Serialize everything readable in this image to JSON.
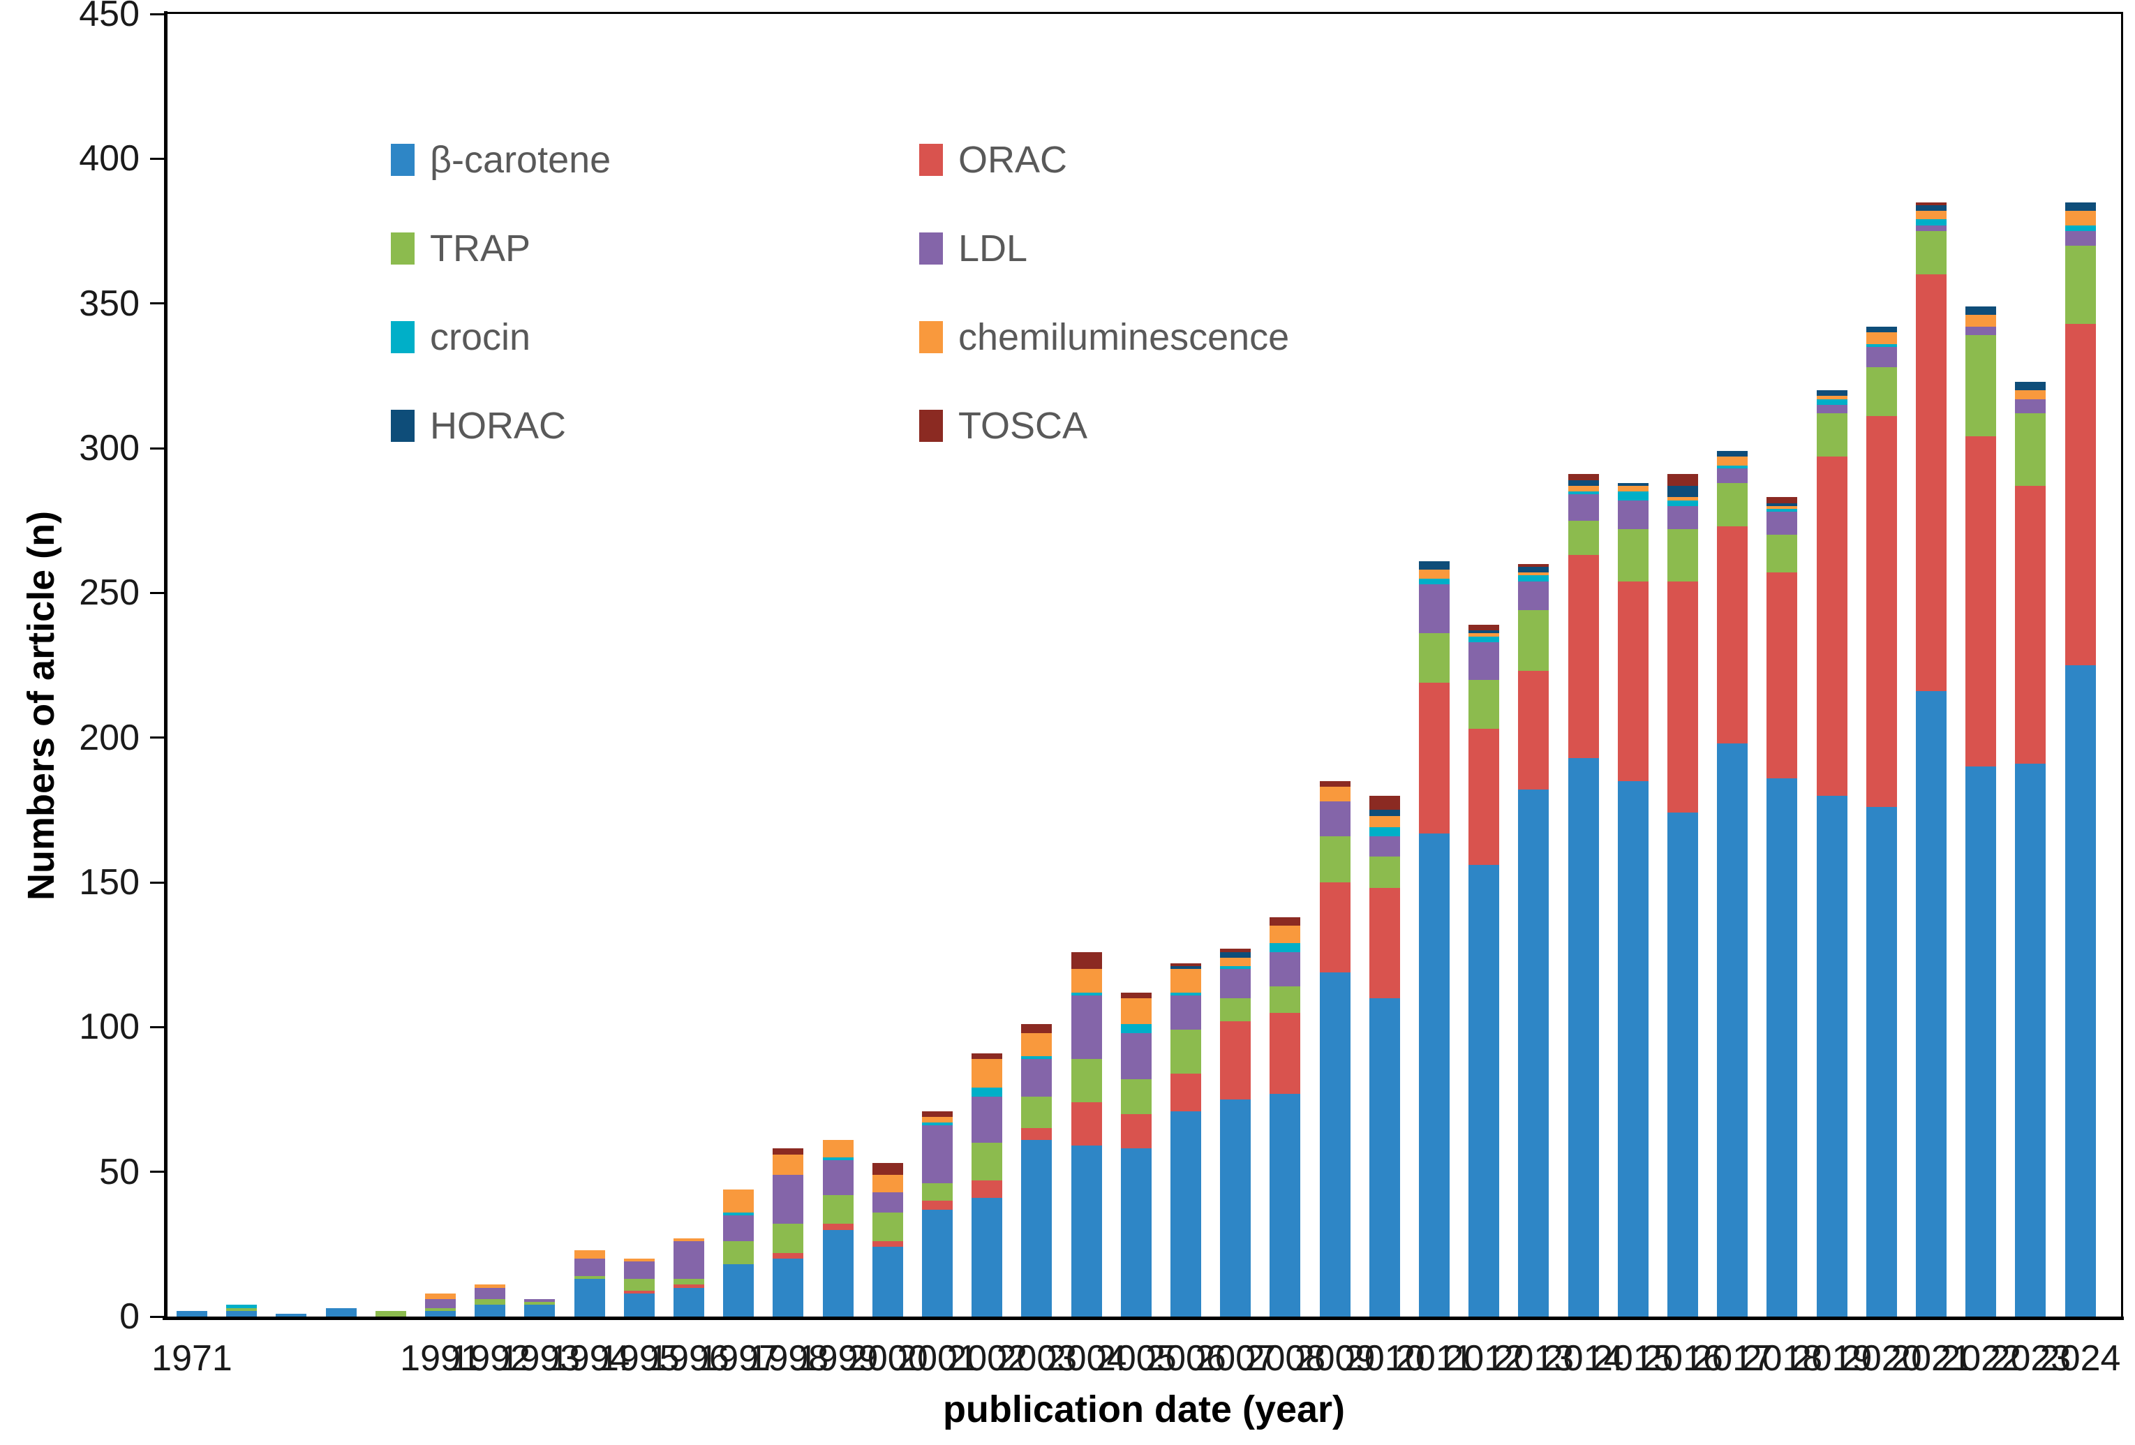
{
  "chart_data": {
    "type": "bar",
    "stacked": true,
    "title": "",
    "xlabel": "publication date (year)",
    "ylabel": "Numbers of article (n)",
    "ylim": [
      0,
      450
    ],
    "y_tick_step": 50,
    "grid": false,
    "legend_position": "upper-left, two columns inside plot",
    "x_tick_labels": [
      "1971",
      "1991",
      "1996",
      "2000",
      "2004",
      "2008",
      "2012",
      "2016",
      "2020",
      "2024"
    ],
    "categories": [
      "1971",
      "",
      "",
      "",
      "",
      "1991",
      "1992",
      "1993",
      "1994",
      "1995",
      "1996",
      "1997",
      "1998",
      "1999",
      "2000",
      "2001",
      "2002",
      "2003",
      "2004",
      "2005",
      "2006",
      "2007",
      "2008",
      "2009",
      "2010",
      "2011",
      "2012",
      "2013",
      "2014",
      "2015",
      "2016",
      "2017",
      "2018",
      "2019",
      "2020",
      "2021",
      "2022",
      "2023",
      "2024"
    ],
    "series": [
      {
        "name": "β-carotene",
        "color": "#2E86C6",
        "values": [
          2,
          2,
          1,
          3,
          0,
          2,
          4,
          4,
          13,
          8,
          10,
          18,
          20,
          30,
          24,
          37,
          41,
          61,
          59,
          58,
          71,
          75,
          77,
          119,
          110,
          167,
          156,
          182,
          193,
          185,
          174,
          198,
          186,
          180,
          176,
          216,
          190,
          191,
          225
        ]
      },
      {
        "name": "ORAC",
        "color": "#D9534E",
        "values": [
          0,
          0,
          0,
          0,
          0,
          0,
          0,
          0,
          0,
          1,
          1,
          0,
          2,
          2,
          2,
          3,
          6,
          4,
          15,
          12,
          13,
          27,
          28,
          31,
          38,
          52,
          47,
          41,
          70,
          69,
          80,
          75,
          71,
          117,
          135,
          144,
          114,
          96,
          118
        ]
      },
      {
        "name": "TRAP",
        "color": "#8CBB4E",
        "values": [
          0,
          1,
          0,
          0,
          2,
          1,
          2,
          1,
          1,
          4,
          2,
          8,
          10,
          10,
          10,
          6,
          13,
          11,
          15,
          12,
          15,
          8,
          9,
          16,
          11,
          17,
          17,
          21,
          12,
          18,
          18,
          15,
          13,
          15,
          17,
          15,
          35,
          25,
          27
        ]
      },
      {
        "name": "LDL",
        "color": "#8465A9",
        "values": [
          0,
          0,
          0,
          0,
          0,
          3,
          4,
          1,
          6,
          6,
          13,
          9,
          17,
          12,
          7,
          20,
          16,
          13,
          22,
          16,
          12,
          10,
          12,
          12,
          7,
          17,
          13,
          10,
          9,
          10,
          8,
          5,
          8,
          3,
          7,
          2,
          3,
          5,
          5
        ]
      },
      {
        "name": "crocin",
        "color": "#00AFC8",
        "values": [
          0,
          1,
          0,
          0,
          0,
          0,
          0,
          0,
          0,
          0,
          0,
          1,
          0,
          1,
          0,
          1,
          3,
          1,
          1,
          3,
          1,
          1,
          3,
          0,
          3,
          2,
          2,
          2,
          1,
          3,
          2,
          1,
          1,
          2,
          1,
          2,
          0,
          0,
          2
        ]
      },
      {
        "name": "chemiluminescence",
        "color": "#F9993D",
        "values": [
          0,
          0,
          0,
          0,
          0,
          2,
          1,
          0,
          3,
          1,
          1,
          8,
          7,
          6,
          6,
          2,
          10,
          8,
          8,
          9,
          8,
          3,
          6,
          5,
          4,
          3,
          1,
          1,
          2,
          2,
          1,
          3,
          1,
          1,
          4,
          3,
          4,
          3,
          5
        ]
      },
      {
        "name": "HORAC",
        "color": "#0E4D79",
        "values": [
          0,
          0,
          0,
          0,
          0,
          0,
          0,
          0,
          0,
          0,
          0,
          0,
          0,
          0,
          0,
          0,
          0,
          0,
          0,
          0,
          1,
          2,
          0,
          0,
          2,
          3,
          1,
          2,
          2,
          1,
          4,
          2,
          1,
          2,
          2,
          2,
          3,
          3,
          3
        ]
      },
      {
        "name": "TOSCA",
        "color": "#8B2A22",
        "values": [
          0,
          0,
          0,
          0,
          0,
          0,
          0,
          0,
          0,
          0,
          0,
          0,
          2,
          0,
          4,
          2,
          2,
          3,
          6,
          2,
          1,
          1,
          3,
          2,
          5,
          0,
          2,
          1,
          2,
          0,
          4,
          0,
          2,
          0,
          0,
          1,
          0,
          0,
          0
        ]
      }
    ],
    "y_tick_values": [
      0,
      50,
      100,
      150,
      200,
      250,
      300,
      350,
      400,
      450
    ]
  },
  "legend": {
    "items": [
      {
        "label": "β-carotene",
        "color": "#2E86C6"
      },
      {
        "label": "ORAC",
        "color": "#D9534E"
      },
      {
        "label": "TRAP",
        "color": "#8CBB4E"
      },
      {
        "label": "LDL",
        "color": "#8465A9"
      },
      {
        "label": "crocin",
        "color": "#00AFC8"
      },
      {
        "label": "chemiluminescence",
        "color": "#F9993D"
      },
      {
        "label": "HORAC",
        "color": "#0E4D79"
      },
      {
        "label": "TOSCA",
        "color": "#8B2A22"
      }
    ]
  }
}
